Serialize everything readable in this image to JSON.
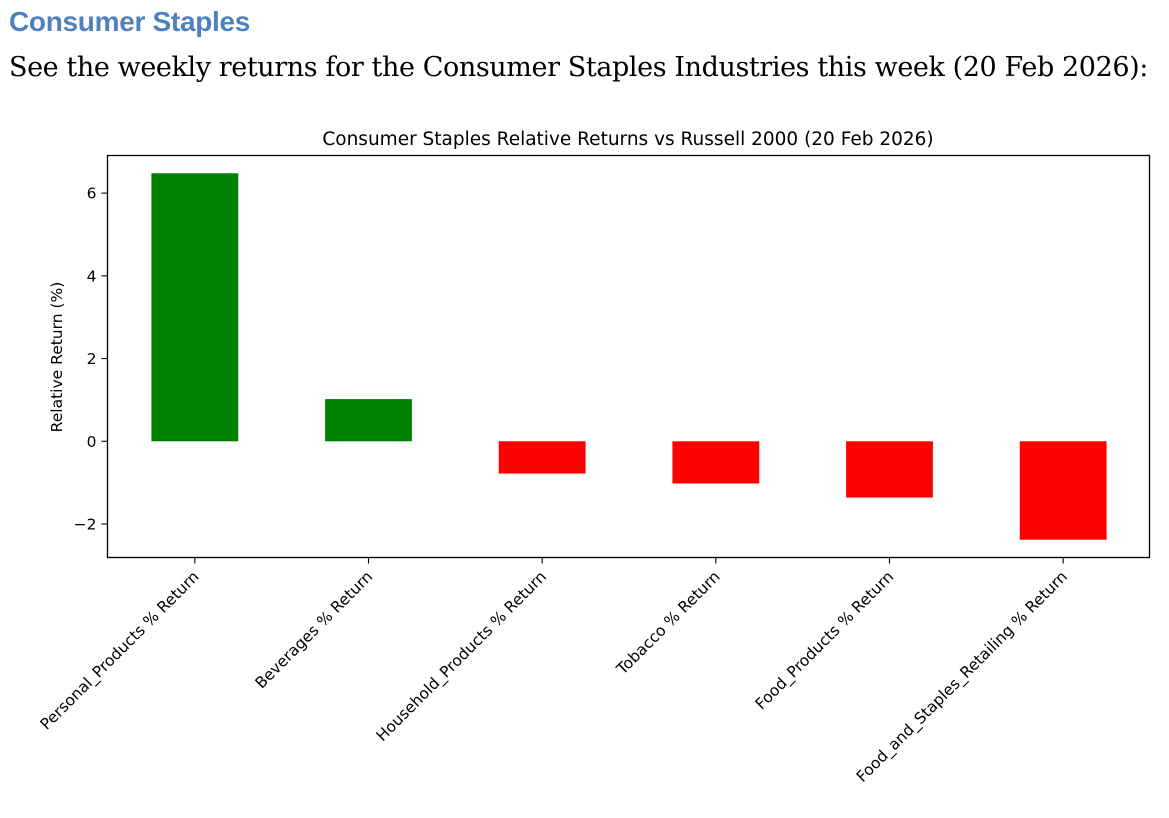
{
  "page": {
    "heading": "Consumer Staples",
    "intro": "See the weekly returns for the Consumer Staples Industries this week (20 Feb 2026):"
  },
  "chart_data": {
    "type": "bar",
    "title": "Consumer Staples Relative Returns vs Russell 2000 (20 Feb 2026)",
    "xlabel": "",
    "ylabel": "Relative Return (%)",
    "categories": [
      "Personal_Products % Return",
      "Beverages % Return",
      "Household_Products % Return",
      "Tobacco % Return",
      "Food_Products % Return",
      "Food_and_Staples_Retailing % Return"
    ],
    "values": [
      6.48,
      1.02,
      -0.78,
      -1.02,
      -1.36,
      -2.38
    ],
    "ylim": [
      -2.81,
      6.91
    ],
    "yticks": [
      -2,
      0,
      2,
      4,
      6
    ],
    "ytick_labels": [
      "−2",
      "0",
      "2",
      "4",
      "6"
    ],
    "positive_color": "#008000",
    "negative_color": "#ff0000",
    "grid": false,
    "legend": "none"
  }
}
